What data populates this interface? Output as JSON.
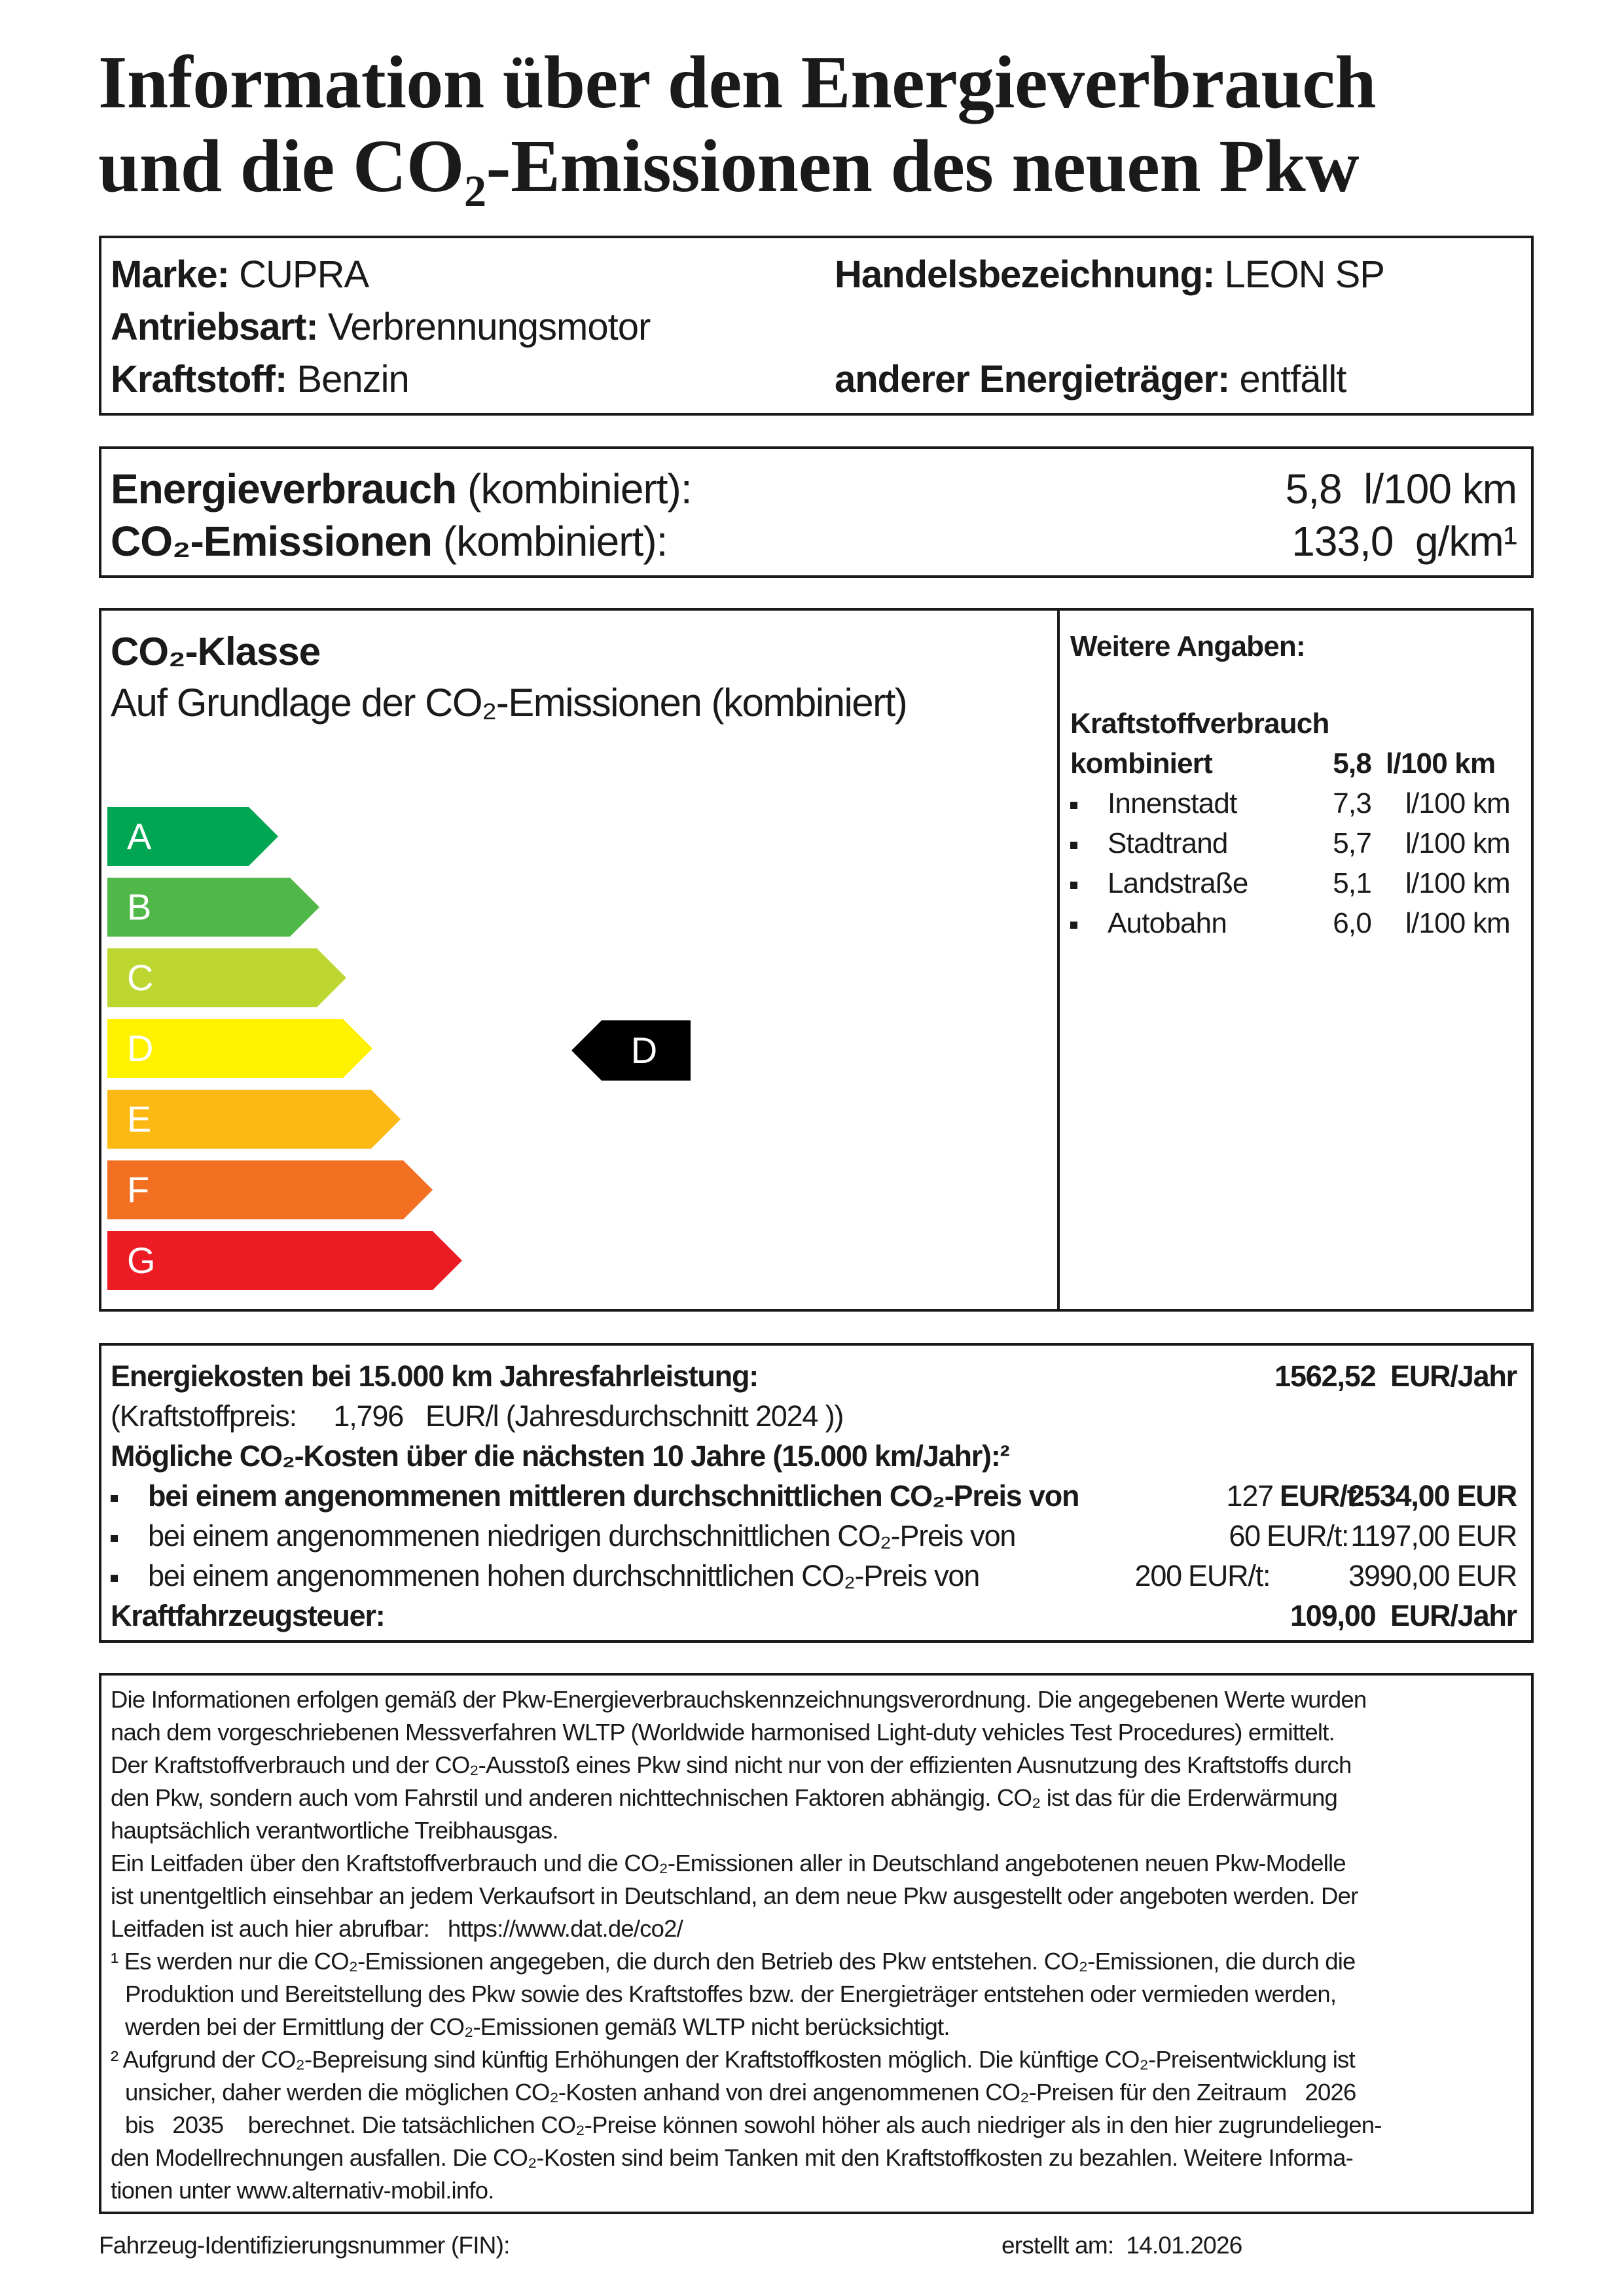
{
  "title": {
    "line1": "Information über den Energieverbrauch",
    "line2": "und die CO₂-Emissionen des neuen Pkw"
  },
  "vehicle": {
    "brand_label": "Marke:",
    "brand": "CUPRA",
    "trade_label": "Handelsbezeichnung:",
    "trade": "LEON SP",
    "drive_label": "Antriebsart:",
    "drive": "Verbrennungsmotor",
    "fuel_label": "Kraftstoff:",
    "fuel": "Benzin",
    "other_label": "anderer Energieträger:",
    "other": "entfällt"
  },
  "combined": {
    "energy_label": "Energieverbrauch",
    "energy_suffix": "(kombiniert):",
    "energy_value": "5,8  l/100 km",
    "co2_label": "CO₂-Emissionen",
    "co2_suffix": "(kombiniert):",
    "co2_value": "133,0  g/km¹"
  },
  "co2_class": {
    "heading": "CO₂-Klasse",
    "subheading": "Auf Grundlage der CO₂-Emissionen (kombiniert)",
    "classes": [
      {
        "label": "A",
        "color": "#00a651"
      },
      {
        "label": "B",
        "color": "#50b848"
      },
      {
        "label": "C",
        "color": "#bed630"
      },
      {
        "label": "D",
        "color": "#fff200"
      },
      {
        "label": "E",
        "color": "#fdb913"
      },
      {
        "label": "F",
        "color": "#f36f21"
      },
      {
        "label": "G",
        "color": "#ed1c24"
      }
    ],
    "current": "D"
  },
  "further": {
    "heading": "Weitere Angaben:",
    "consumption_heading": "Kraftstoffverbrauch",
    "combined_label": "kombiniert",
    "combined_value": "5,8",
    "unit": "l/100 km",
    "items": [
      {
        "label": "Innenstadt",
        "value": "7,3",
        "unit": "l/100 km"
      },
      {
        "label": "Stadtrand",
        "value": "5,7",
        "unit": "l/100 km"
      },
      {
        "label": "Landstraße",
        "value": "5,1",
        "unit": "l/100 km"
      },
      {
        "label": "Autobahn",
        "value": "6,0",
        "unit": "l/100 km"
      }
    ]
  },
  "costs": {
    "energy_label": "Energiekosten bei 15.000 km Jahresfahrleistung:",
    "energy_value": "1562,52  EUR/Jahr",
    "price_prefix": "(Kraftstoffpreis:",
    "price_value": "1,796",
    "price_unit": "EUR/l (Jahresdurchschnitt",
    "price_year": "2024",
    "price_close": "))",
    "co2_label": "Mögliche CO₂-Kosten über die nächsten 10 Jahre (15.000 km/Jahr):²",
    "scenarios": [
      {
        "label": "bei einem angenommenen mittleren durchschnittlichen CO₂-Preis von",
        "price": "127",
        "unit": "EUR/t:",
        "value": "2534,00 EUR"
      },
      {
        "label": "bei einem angenommenen niedrigen durchschnittlichen CO₂-Preis von",
        "price": "60",
        "unit": "EUR/t:",
        "value": "1197,00 EUR"
      },
      {
        "label": "bei einem angenommenen hohen durchschnittlichen CO₂-Preis von",
        "price": "200",
        "unit": "EUR/t:",
        "value": "3990,00 EUR"
      }
    ],
    "tax_label": "Kraftfahrzeugsteuer:",
    "tax_value": "109,00  EUR/Jahr"
  },
  "notes": {
    "lines": [
      "Die Informationen erfolgen gemäß der Pkw-Energieverbrauchskennzeichnungsverordnung. Die angegebenen Werte wurden",
      "nach dem vorgeschriebenen Messverfahren WLTP (Worldwide harmonised Light-duty vehicles Test Procedures) ermittelt.",
      "Der Kraftstoffverbrauch und der CO₂-Ausstoß eines Pkw sind nicht nur von der effizienten Ausnutzung des Kraftstoffs durch",
      "den Pkw, sondern auch vom Fahrstil und anderen nichttechnischen Faktoren abhängig. CO₂ ist das für die Erderwärmung",
      "hauptsächlich verantwortliche Treibhausgas.",
      "Ein Leitfaden über den Kraftstoffverbrauch und die CO₂-Emissionen aller in Deutschland angebotenen neuen Pkw-Modelle",
      "ist unentgeltlich einsehbar an jedem Verkaufsort in Deutschland, an dem neue Pkw ausgestellt oder angeboten werden. Der"
    ],
    "link_prefix": "Leitfaden ist auch hier abrufbar:",
    "link": "https://www.dat.de/co2/",
    "footnote1": [
      "¹ Es werden nur die CO₂-Emissionen angegeben, die durch den Betrieb des Pkw entstehen. CO₂-Emissionen, die durch die",
      "Produktion und Bereitstellung des Pkw sowie des Kraftstoffes bzw. der Energieträger entstehen oder vermieden werden,",
      "werden bei der Ermittlung der CO₂-Emissionen gemäß WLTP nicht berücksichtigt."
    ],
    "footnote2_a": "² Aufgrund der CO₂-Bepreisung sind künftig Erhöhungen der Kraftstoffkosten möglich. Die künftige CO₂-Preisentwicklung ist",
    "footnote2_b": "unsicher, daher werden die möglichen CO₂-Kosten anhand von drei angenommenen CO₂-Preisen für den Zeitraum",
    "year_from": "2026",
    "bis": "bis",
    "year_to": "2035",
    "footnote2_c": "berechnet. Die tatsächlichen CO₂-Preise können sowohl höher als auch niedriger als in den hier zugrundeliegen-",
    "footnote2_d": "den Modellrechnungen ausfallen. Die CO₂-Kosten sind beim Tanken mit den Kraftstoffkosten zu bezahlen. Weitere Informa-",
    "footnote2_e": "tionen unter www.alternativ-mobil.info."
  },
  "footer": {
    "fin_label": "Fahrzeug-Identifizierungsnummer (FIN):",
    "created_label": "erstellt am:",
    "created_date": "14.01.2026"
  }
}
